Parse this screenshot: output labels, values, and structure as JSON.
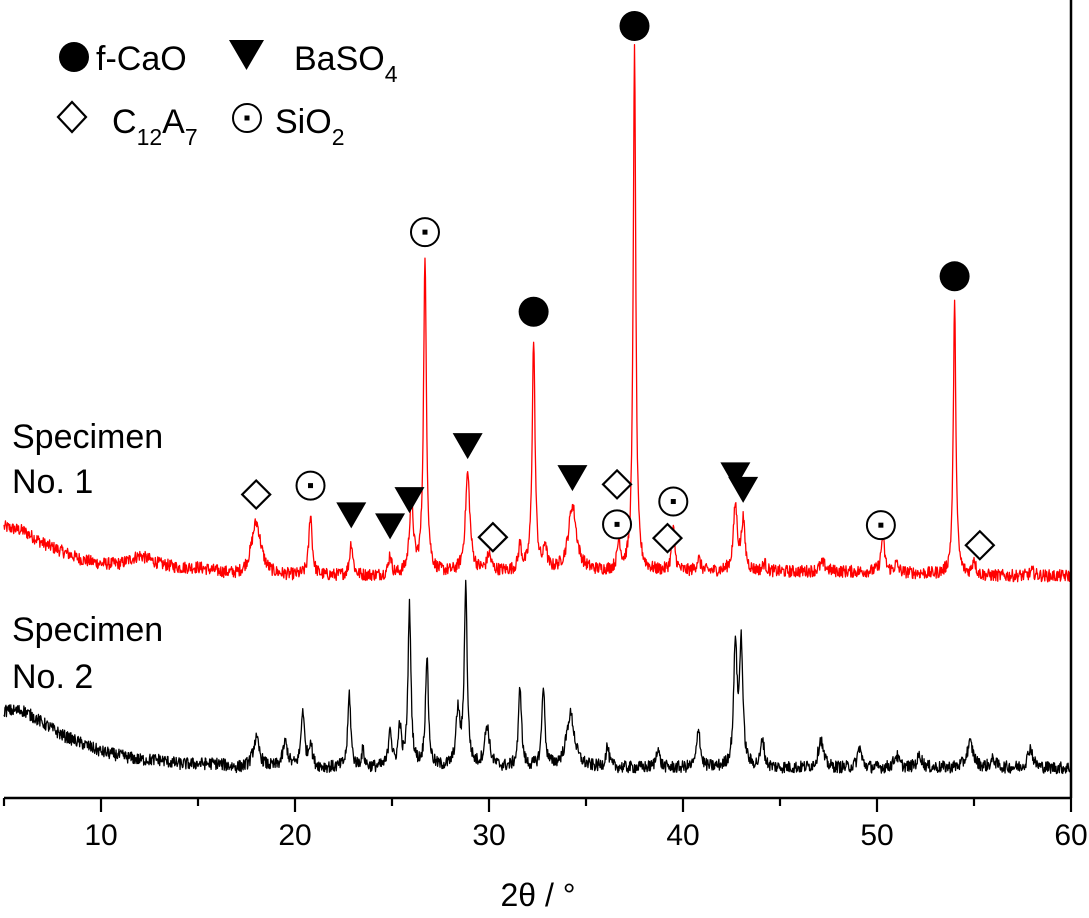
{
  "chart_data": {
    "type": "line",
    "xlabel": "2θ / °",
    "ylabel": "",
    "xlim": [
      5,
      60
    ],
    "grid": false,
    "x_ticks": [
      "10",
      "20",
      "30",
      "40",
      "50",
      "60"
    ],
    "legend": {
      "placement": "top-left",
      "entries": [
        {
          "marker": "filled-circle",
          "text": "f-CaO",
          "sub": ""
        },
        {
          "marker": "filled-down-triangle",
          "text": "BaSO",
          "sub": "4"
        },
        {
          "marker": "open-diamond",
          "text": "C",
          "sub": "12",
          "text2": "A",
          "sub2": "7"
        },
        {
          "marker": "dotted-circle",
          "text": "SiO",
          "sub": "2"
        }
      ]
    },
    "colors": {
      "specimen_1": "#ff0000",
      "specimen_2": "#000000"
    },
    "series": [
      {
        "name": "Specimen No. 1",
        "label_line1": "Specimen",
        "label_line2": "No. 1",
        "color": "#ff0000",
        "baseline": [
          [
            5,
            0.12
          ],
          [
            6,
            0.11
          ],
          [
            7,
            0.08
          ],
          [
            8,
            0.06
          ],
          [
            9,
            0.04
          ],
          [
            10,
            0.03
          ],
          [
            11,
            0.03
          ],
          [
            12,
            0.05
          ],
          [
            13,
            0.03
          ],
          [
            14,
            0.02
          ],
          [
            15,
            0.02
          ],
          [
            16,
            0.01
          ],
          [
            17,
            0.0
          ],
          [
            20,
            0.0
          ],
          [
            25,
            0.0
          ],
          [
            30,
            0.01
          ],
          [
            35,
            0.01
          ],
          [
            40,
            0.01
          ],
          [
            45,
            0.01
          ],
          [
            50,
            0.01
          ],
          [
            55,
            0.0
          ],
          [
            60,
            0.0
          ]
        ],
        "peaks": [
          {
            "x": 18.0,
            "h": 0.13,
            "w": 0.3
          },
          {
            "x": 20.8,
            "h": 0.15,
            "w": 0.1
          },
          {
            "x": 22.9,
            "h": 0.08,
            "w": 0.1
          },
          {
            "x": 24.9,
            "h": 0.05,
            "w": 0.09
          },
          {
            "x": 26.0,
            "h": 0.18,
            "w": 0.12
          },
          {
            "x": 26.7,
            "h": 0.76,
            "w": 0.09
          },
          {
            "x": 28.9,
            "h": 0.24,
            "w": 0.14
          },
          {
            "x": 30.0,
            "h": 0.04,
            "w": 0.12
          },
          {
            "x": 31.6,
            "h": 0.06,
            "w": 0.1
          },
          {
            "x": 32.3,
            "h": 0.56,
            "w": 0.09
          },
          {
            "x": 32.9,
            "h": 0.06,
            "w": 0.09
          },
          {
            "x": 34.3,
            "h": 0.16,
            "w": 0.25
          },
          {
            "x": 36.7,
            "h": 0.07,
            "w": 0.1
          },
          {
            "x": 37.5,
            "h": 1.27,
            "w": 0.08
          },
          {
            "x": 39.5,
            "h": 0.1,
            "w": 0.1
          },
          {
            "x": 40.8,
            "h": 0.03,
            "w": 0.12
          },
          {
            "x": 42.7,
            "h": 0.16,
            "w": 0.12
          },
          {
            "x": 43.1,
            "h": 0.12,
            "w": 0.11
          },
          {
            "x": 44.2,
            "h": 0.02,
            "w": 0.1
          },
          {
            "x": 47.2,
            "h": 0.02,
            "w": 0.2
          },
          {
            "x": 50.3,
            "h": 0.09,
            "w": 0.1
          },
          {
            "x": 51.0,
            "h": 0.02,
            "w": 0.12
          },
          {
            "x": 54.0,
            "h": 0.66,
            "w": 0.08
          },
          {
            "x": 55.0,
            "h": 0.04,
            "w": 0.1
          },
          {
            "x": 58.0,
            "h": 0.01,
            "w": 0.15
          }
        ]
      },
      {
        "name": "Specimen No. 2",
        "label_line1": "Specimen",
        "label_line2": "No. 2",
        "color": "#000000",
        "baseline": [
          [
            5,
            0.14
          ],
          [
            6,
            0.14
          ],
          [
            7,
            0.11
          ],
          [
            8,
            0.08
          ],
          [
            9,
            0.06
          ],
          [
            10,
            0.04
          ],
          [
            11,
            0.03
          ],
          [
            12,
            0.02
          ],
          [
            13,
            0.02
          ],
          [
            14,
            0.01
          ],
          [
            15,
            0.01
          ],
          [
            16,
            0.01
          ],
          [
            17,
            0.0
          ],
          [
            20,
            0.0
          ],
          [
            25,
            0.0
          ],
          [
            30,
            0.0
          ],
          [
            35,
            0.0
          ],
          [
            40,
            0.0
          ],
          [
            45,
            0.0
          ],
          [
            50,
            0.0
          ],
          [
            55,
            0.0
          ],
          [
            60,
            0.0
          ]
        ],
        "peaks": [
          {
            "x": 18.0,
            "h": 0.07,
            "w": 0.2
          },
          {
            "x": 19.5,
            "h": 0.06,
            "w": 0.15
          },
          {
            "x": 20.4,
            "h": 0.14,
            "w": 0.1
          },
          {
            "x": 20.8,
            "h": 0.06,
            "w": 0.1
          },
          {
            "x": 22.8,
            "h": 0.18,
            "w": 0.09
          },
          {
            "x": 23.5,
            "h": 0.04,
            "w": 0.09
          },
          {
            "x": 24.9,
            "h": 0.1,
            "w": 0.09
          },
          {
            "x": 25.4,
            "h": 0.1,
            "w": 0.09
          },
          {
            "x": 25.9,
            "h": 0.39,
            "w": 0.09
          },
          {
            "x": 26.8,
            "h": 0.27,
            "w": 0.09
          },
          {
            "x": 28.4,
            "h": 0.13,
            "w": 0.12
          },
          {
            "x": 28.8,
            "h": 0.44,
            "w": 0.09
          },
          {
            "x": 29.9,
            "h": 0.1,
            "w": 0.15
          },
          {
            "x": 31.6,
            "h": 0.2,
            "w": 0.09
          },
          {
            "x": 32.8,
            "h": 0.2,
            "w": 0.09
          },
          {
            "x": 34.2,
            "h": 0.13,
            "w": 0.25
          },
          {
            "x": 36.1,
            "h": 0.05,
            "w": 0.1
          },
          {
            "x": 38.7,
            "h": 0.05,
            "w": 0.1
          },
          {
            "x": 40.8,
            "h": 0.1,
            "w": 0.1
          },
          {
            "x": 42.7,
            "h": 0.3,
            "w": 0.1
          },
          {
            "x": 43.0,
            "h": 0.3,
            "w": 0.1
          },
          {
            "x": 44.1,
            "h": 0.07,
            "w": 0.1
          },
          {
            "x": 47.1,
            "h": 0.07,
            "w": 0.15
          },
          {
            "x": 49.1,
            "h": 0.05,
            "w": 0.12
          },
          {
            "x": 51.0,
            "h": 0.03,
            "w": 0.15
          },
          {
            "x": 52.2,
            "h": 0.03,
            "w": 0.15
          },
          {
            "x": 54.8,
            "h": 0.06,
            "w": 0.2
          },
          {
            "x": 56.0,
            "h": 0.02,
            "w": 0.15
          },
          {
            "x": 57.9,
            "h": 0.05,
            "w": 0.15
          }
        ]
      }
    ],
    "annotations": [
      {
        "marker": "filled-circle",
        "x": 37.5
      },
      {
        "marker": "filled-circle",
        "x": 32.3
      },
      {
        "marker": "filled-circle",
        "x": 54.0
      },
      {
        "marker": "dotted-circle",
        "x": 26.7
      },
      {
        "marker": "dotted-circle",
        "x": 20.8
      },
      {
        "marker": "dotted-circle",
        "x": 36.6
      },
      {
        "marker": "dotted-circle",
        "x": 39.5
      },
      {
        "marker": "dotted-circle",
        "x": 50.2
      },
      {
        "marker": "filled-down-triangle",
        "x": 22.9
      },
      {
        "marker": "filled-down-triangle",
        "x": 24.9
      },
      {
        "marker": "filled-down-triangle",
        "x": 25.9
      },
      {
        "marker": "filled-down-triangle",
        "x": 28.9
      },
      {
        "marker": "filled-down-triangle",
        "x": 34.3
      },
      {
        "marker": "filled-down-triangle",
        "x": 42.7
      },
      {
        "marker": "filled-down-triangle",
        "x": 43.1
      },
      {
        "marker": "open-diamond",
        "x": 18.0
      },
      {
        "marker": "open-diamond",
        "x": 30.2
      },
      {
        "marker": "open-diamond",
        "x": 36.6
      },
      {
        "marker": "open-diamond",
        "x": 39.2
      },
      {
        "marker": "open-diamond",
        "x": 55.3
      }
    ]
  }
}
